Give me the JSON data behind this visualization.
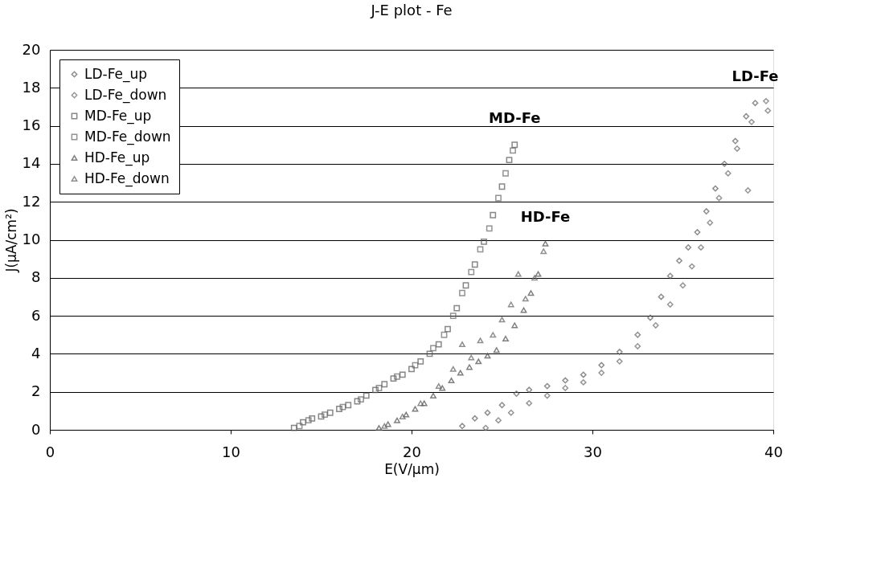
{
  "chart_data": {
    "type": "scatter",
    "title": "J-E plot - Fe",
    "xlabel": "E(V/µm)",
    "ylabel": "J(µA/cm²)",
    "xlim": [
      0,
      40
    ],
    "xticks": [
      0,
      10,
      20,
      30,
      40
    ],
    "ylim": [
      0,
      20
    ],
    "yticks": [
      0,
      2,
      4,
      6,
      8,
      10,
      12,
      14,
      16,
      18,
      20
    ],
    "grid": "y",
    "legend": "top left",
    "series": [
      {
        "name": "LD-Fe_up",
        "color": "#5c5c5c",
        "marker": "diamond",
        "x": [
          22.8,
          23.5,
          24.2,
          25,
          25.8,
          26.5,
          27.5,
          28.5,
          29.5,
          30.5,
          31.5,
          32.5,
          33.2,
          33.8,
          34.3,
          34.8,
          35.3,
          35.8,
          36.3,
          36.8,
          37.3,
          37.9,
          38.5,
          39.0
        ],
        "values": [
          0.2,
          0.6,
          0.9,
          1.3,
          1.9,
          2.1,
          2.3,
          2.6,
          2.9,
          3.4,
          4.1,
          5.0,
          5.9,
          7.0,
          8.1,
          8.9,
          9.6,
          10.4,
          11.5,
          12.7,
          14.0,
          15.2,
          16.5,
          17.2
        ]
      },
      {
        "name": "LD-Fe_down",
        "color": "#6a6a6a",
        "marker": "diamond",
        "x": [
          24.1,
          24.8,
          25.5,
          26.5,
          27.5,
          28.5,
          29.5,
          30.5,
          31.5,
          32.5,
          33.5,
          34.3,
          35.0,
          35.5,
          36.0,
          36.5,
          37.0,
          37.5,
          38.0,
          38.6,
          38.8,
          39.6,
          39.7
        ],
        "values": [
          0.1,
          0.5,
          0.9,
          1.4,
          1.8,
          2.2,
          2.5,
          3.0,
          3.6,
          4.4,
          5.5,
          6.6,
          7.6,
          8.6,
          9.6,
          10.9,
          12.2,
          13.5,
          14.8,
          12.6,
          16.2,
          17.3,
          16.8
        ]
      },
      {
        "name": "MD-Fe_up",
        "color": "#555555",
        "marker": "square",
        "x": [
          13.5,
          14,
          14.5,
          15,
          15.5,
          16,
          16.5,
          17,
          17.5,
          18,
          18.5,
          19,
          19.5,
          20,
          20.5,
          21,
          21.5,
          22,
          22.5,
          23,
          23.5,
          24,
          24.5,
          25,
          25.4,
          25.7
        ],
        "values": [
          0.1,
          0.4,
          0.6,
          0.7,
          0.9,
          1.1,
          1.3,
          1.5,
          1.8,
          2.1,
          2.4,
          2.7,
          2.9,
          3.2,
          3.6,
          4.0,
          4.5,
          5.3,
          6.4,
          7.6,
          8.7,
          9.9,
          11.3,
          12.8,
          14.2,
          15.0
        ]
      },
      {
        "name": "MD-Fe_down",
        "color": "#666666",
        "marker": "square",
        "x": [
          13.8,
          14.3,
          15.2,
          16.2,
          17.2,
          18.2,
          19.2,
          20.2,
          21.2,
          21.8,
          22.3,
          22.8,
          23.3,
          23.8,
          24.3,
          24.8,
          25.2,
          25.6
        ],
        "values": [
          0.2,
          0.5,
          0.8,
          1.2,
          1.6,
          2.2,
          2.8,
          3.4,
          4.3,
          5.0,
          6.0,
          7.2,
          8.3,
          9.5,
          10.6,
          12.2,
          13.5,
          14.7
        ]
      },
      {
        "name": "HD-Fe_up",
        "color": "#4a4a4a",
        "marker": "triangle",
        "x": [
          18.2,
          18.7,
          19.2,
          19.7,
          20.2,
          20.7,
          21.2,
          21.7,
          22.2,
          22.7,
          23.2,
          23.7,
          24.2,
          24.7,
          25.2,
          25.7,
          26.2,
          26.6,
          27.0,
          27.4
        ],
        "values": [
          0.1,
          0.3,
          0.5,
          0.8,
          1.1,
          1.4,
          1.8,
          2.2,
          2.6,
          3.0,
          3.3,
          3.6,
          3.9,
          4.2,
          4.8,
          5.5,
          6.3,
          7.2,
          8.2,
          9.8
        ]
      },
      {
        "name": "HD-Fe_down",
        "color": "#606060",
        "marker": "triangle",
        "x": [
          18.5,
          19.5,
          20.5,
          21.5,
          22.3,
          22.8,
          23.3,
          23.8,
          24.5,
          25.0,
          25.5,
          25.9,
          26.3,
          26.8,
          27.3
        ],
        "values": [
          0.2,
          0.7,
          1.4,
          2.3,
          3.2,
          4.5,
          3.8,
          4.7,
          5.0,
          5.8,
          6.6,
          8.2,
          6.9,
          8.0,
          9.4
        ]
      }
    ],
    "annotations": [
      "LD-Fe",
      "MD-Fe",
      "HD-Fe"
    ]
  }
}
